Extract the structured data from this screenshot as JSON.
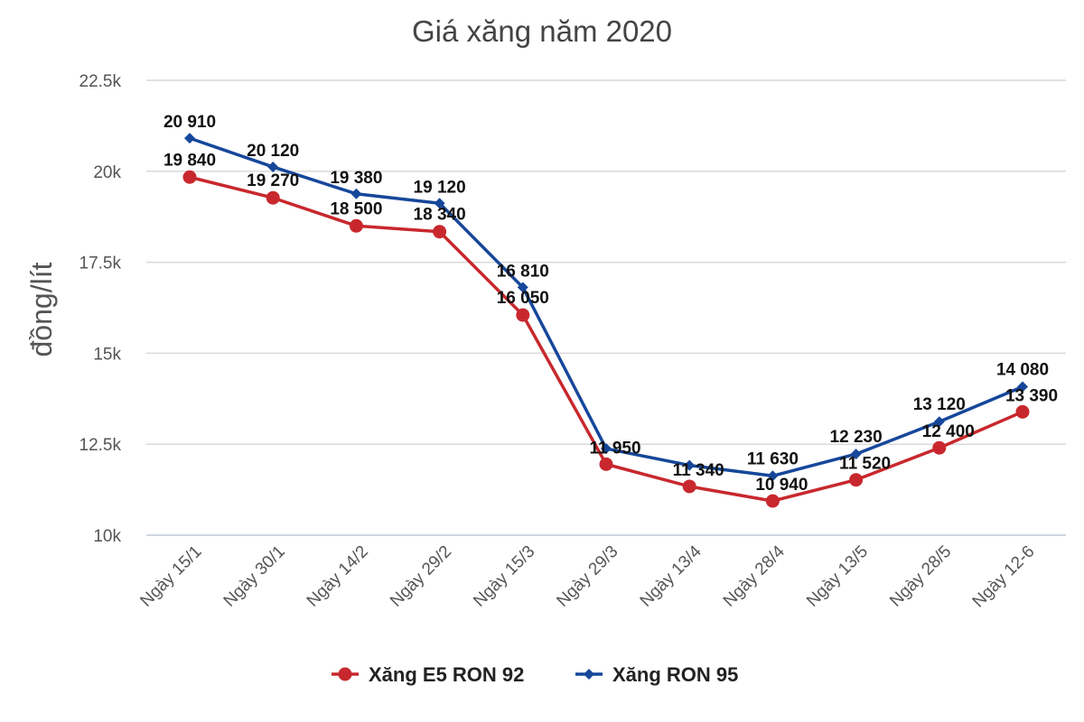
{
  "chart_data": {
    "type": "line",
    "title": "Giá xăng năm 2020",
    "ylabel": "đồng/lít",
    "xlabel": "",
    "ylim": [
      10000,
      22500
    ],
    "yticks": [
      {
        "value": 10000,
        "label": "10k"
      },
      {
        "value": 12500,
        "label": "12.5k"
      },
      {
        "value": 15000,
        "label": "15k"
      },
      {
        "value": 17500,
        "label": "17.5k"
      },
      {
        "value": 20000,
        "label": "20k"
      },
      {
        "value": 22500,
        "label": "22.5k"
      }
    ],
    "categories": [
      "Ngày 15/1",
      "Ngày 30/1",
      "Ngày 14/2",
      "Ngày 29/2",
      "Ngày 15/3",
      "Ngày 29/3",
      "Ngày 13/4",
      "Ngày 28/4",
      "Ngày 13/5",
      "Ngày 28/5",
      "Ngày 12-6"
    ],
    "grid": true,
    "legend_position": "bottom",
    "series": [
      {
        "name": "Xăng E5 RON 92",
        "color": "#c8282d",
        "marker": "circle",
        "values": [
          19840,
          19270,
          18500,
          18340,
          16050,
          11950,
          11340,
          10940,
          11520,
          12400,
          13390
        ],
        "labels": [
          "19 840",
          "19 270",
          "18 500",
          "18 340",
          "16 050",
          "11 950",
          "11 340",
          "10 940",
          "11 520",
          "12 400",
          "13 390"
        ]
      },
      {
        "name": "Xăng RON 95",
        "color": "#16479a",
        "marker": "diamond",
        "values": [
          20910,
          20120,
          19380,
          19120,
          16810,
          12380,
          11920,
          11630,
          12230,
          13120,
          14080
        ],
        "labels": [
          "20 910",
          "20 120",
          "19 380",
          "19 120",
          "16 810",
          "",
          "",
          "11 630",
          "12 230",
          "13 120",
          "14 080"
        ]
      }
    ]
  }
}
